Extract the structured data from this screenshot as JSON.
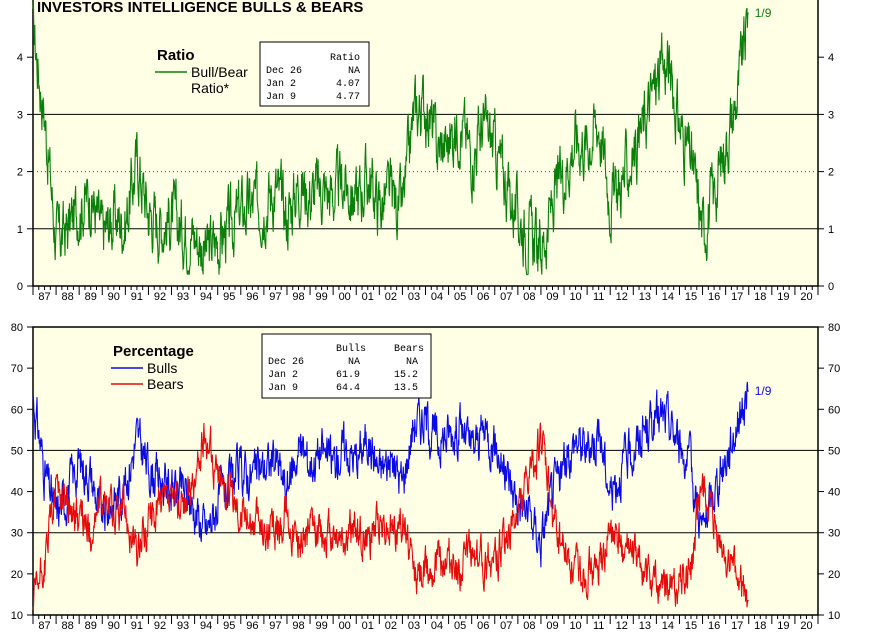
{
  "title": "INVESTORS INTELLIGENCE BULLS & BEARS",
  "colors": {
    "panel_bg": "#ffffe6",
    "ratio_line": "#0a7f0a",
    "bulls": "#0a0ae6",
    "bears": "#e60a0a",
    "grid": "#000000"
  },
  "x_axis": {
    "start_year": 1987,
    "end_year": 2020,
    "tick_labels": [
      "87",
      "88",
      "89",
      "90",
      "91",
      "92",
      "93",
      "94",
      "95",
      "96",
      "97",
      "98",
      "99",
      "00",
      "01",
      "02",
      "03",
      "04",
      "05",
      "06",
      "07",
      "08",
      "09",
      "10",
      "11",
      "12",
      "13",
      "14",
      "15",
      "16",
      "17",
      "18",
      "19",
      "20"
    ]
  },
  "ratio_panel": {
    "heading": "Ratio",
    "legend": [
      "Bull/Bear",
      "Ratio*"
    ],
    "end_label": "1/9",
    "table": {
      "header": [
        "",
        "Ratio"
      ],
      "rows": [
        [
          "Dec 26",
          "NA"
        ],
        [
          "Jan  2",
          "4.07"
        ],
        [
          "Jan  9",
          "4.77"
        ]
      ]
    }
  },
  "percent_panel": {
    "heading": "Percentage",
    "legend": [
      "Bulls",
      "Bears"
    ],
    "end_label": "1/9",
    "table": {
      "header": [
        "",
        "Bulls",
        "Bears"
      ],
      "rows": [
        [
          "Dec 26",
          "NA",
          "NA"
        ],
        [
          "Jan  2",
          "61.9",
          "15.2"
        ],
        [
          "Jan  9",
          "64.4",
          "13.5"
        ]
      ]
    }
  },
  "chart_data": [
    {
      "type": "line",
      "title": "INVESTORS INTELLIGENCE BULLS & BEARS",
      "ylabel": "",
      "ylim": [
        0,
        5
      ],
      "yticks": [
        0,
        1,
        2,
        3,
        4
      ],
      "grid": "solid at 1 and 3, dotted at 2",
      "legend_placement": "top-left",
      "x": [
        1987.0,
        1987.5,
        1988.0,
        1988.5,
        1989.0,
        1989.5,
        1990.0,
        1990.5,
        1991.0,
        1991.5,
        1992.0,
        1992.5,
        1993.0,
        1993.5,
        1994.0,
        1994.5,
        1995.0,
        1995.5,
        1996.0,
        1996.5,
        1997.0,
        1997.5,
        1998.0,
        1998.5,
        1999.0,
        1999.5,
        2000.0,
        2000.5,
        2001.0,
        2001.5,
        2002.0,
        2002.5,
        2003.0,
        2003.5,
        2004.0,
        2004.5,
        2005.0,
        2005.5,
        2006.0,
        2006.5,
        2007.0,
        2007.5,
        2008.0,
        2008.5,
        2009.0,
        2009.5,
        2010.0,
        2010.5,
        2011.0,
        2011.5,
        2012.0,
        2012.5,
        2013.0,
        2013.5,
        2014.0,
        2014.5,
        2015.0,
        2015.5,
        2016.0,
        2016.5,
        2017.0,
        2017.5,
        2018.0
      ],
      "series": [
        {
          "name": "Bull/Bear Ratio*",
          "values": [
            4.5,
            3.0,
            0.8,
            1.0,
            1.4,
            1.6,
            0.9,
            1.2,
            1.1,
            2.2,
            1.3,
            1.1,
            1.2,
            1.0,
            0.9,
            0.6,
            0.8,
            1.0,
            1.3,
            1.4,
            1.5,
            1.7,
            1.2,
            1.8,
            1.6,
            1.7,
            1.6,
            1.8,
            1.5,
            1.9,
            1.4,
            1.6,
            1.3,
            3.0,
            3.2,
            2.4,
            2.5,
            2.9,
            2.3,
            2.8,
            2.4,
            1.8,
            1.2,
            0.9,
            0.6,
            1.4,
            2.0,
            2.6,
            2.5,
            2.9,
            1.5,
            1.8,
            2.3,
            2.9,
            3.6,
            3.9,
            2.8,
            2.2,
            1.0,
            1.6,
            2.5,
            3.3,
            4.77
          ]
        }
      ]
    },
    {
      "type": "line",
      "title": "",
      "ylabel": "",
      "ylim": [
        10,
        80
      ],
      "yticks": [
        10,
        20,
        30,
        40,
        50,
        60,
        70,
        80
      ],
      "grid": "solid at 30 and 50",
      "legend_placement": "top-left",
      "x": [
        1987.0,
        1987.5,
        1988.0,
        1988.5,
        1989.0,
        1989.5,
        1990.0,
        1990.5,
        1991.0,
        1991.5,
        1992.0,
        1992.5,
        1993.0,
        1993.5,
        1994.0,
        1994.5,
        1995.0,
        1995.5,
        1996.0,
        1996.5,
        1997.0,
        1997.5,
        1998.0,
        1998.5,
        1999.0,
        1999.5,
        2000.0,
        2000.5,
        2001.0,
        2001.5,
        2002.0,
        2002.5,
        2003.0,
        2003.5,
        2004.0,
        2004.5,
        2005.0,
        2005.5,
        2006.0,
        2006.5,
        2007.0,
        2007.5,
        2008.0,
        2008.5,
        2009.0,
        2009.5,
        2010.0,
        2010.5,
        2011.0,
        2011.5,
        2012.0,
        2012.5,
        2013.0,
        2013.5,
        2014.0,
        2014.5,
        2015.0,
        2015.5,
        2016.0,
        2016.5,
        2017.0,
        2017.5,
        2018.0
      ],
      "series": [
        {
          "name": "Bulls",
          "values": [
            63,
            45,
            34,
            40,
            47,
            44,
            33,
            38,
            42,
            53,
            46,
            43,
            41,
            40,
            36,
            30,
            37,
            41,
            45,
            44,
            46,
            48,
            40,
            51,
            47,
            50,
            47,
            51,
            48,
            53,
            45,
            48,
            42,
            57,
            58,
            52,
            54,
            56,
            50,
            55,
            52,
            44,
            38,
            34,
            28,
            40,
            46,
            53,
            50,
            55,
            40,
            46,
            50,
            55,
            58,
            57,
            52,
            45,
            30,
            40,
            48,
            57,
            64.4
          ]
        },
        {
          "name": "Bears",
          "values": [
            12,
            22,
            42,
            38,
            33,
            30,
            38,
            34,
            36,
            24,
            33,
            37,
            36,
            37,
            42,
            54,
            44,
            40,
            35,
            33,
            31,
            30,
            35,
            28,
            30,
            29,
            30,
            28,
            31,
            27,
            33,
            31,
            34,
            20,
            21,
            24,
            23,
            22,
            25,
            23,
            24,
            28,
            35,
            42,
            53,
            34,
            26,
            21,
            22,
            20,
            30,
            26,
            24,
            20,
            17,
            16,
            18,
            21,
            42,
            30,
            24,
            19,
            13.5
          ]
        }
      ]
    }
  ]
}
